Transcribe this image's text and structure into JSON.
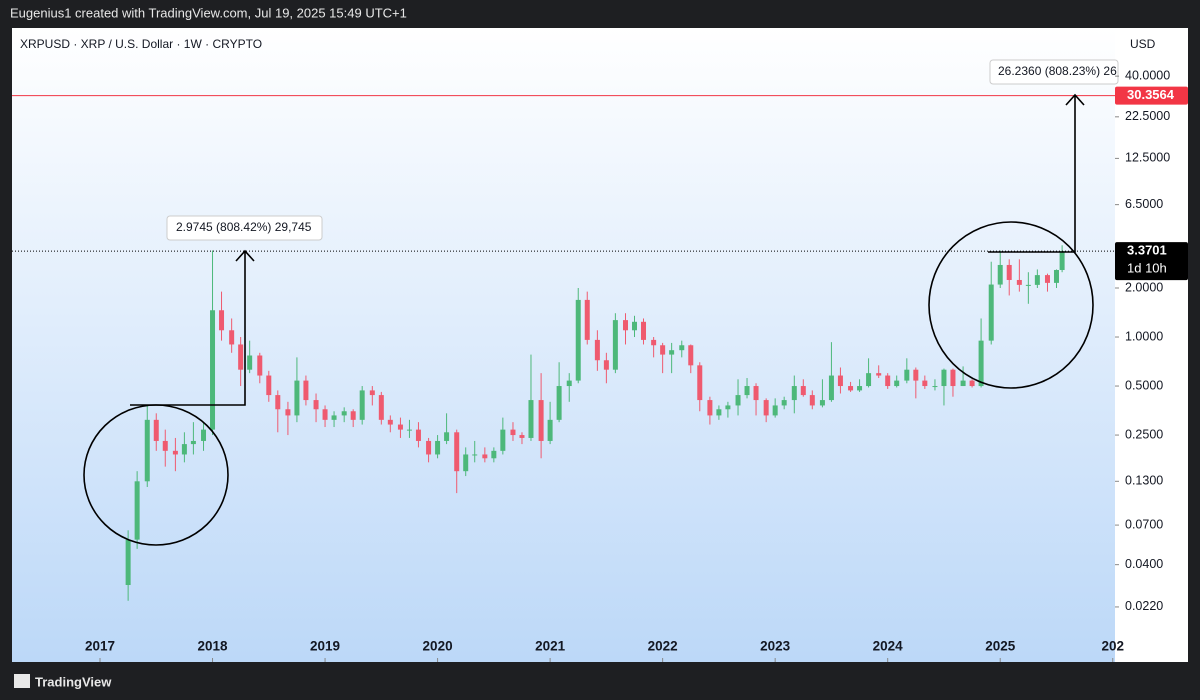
{
  "header": {
    "text": "Eugenius1 created with TradingView.com, Jul 19, 2025 15:49 UTC+1"
  },
  "footer": {
    "brand": "TradingView"
  },
  "chart_data": {
    "type": "candlestick",
    "title": "XRPUSD · XRP / U.S. Dollar · 1W · CRYPTO",
    "y_unit": "USD",
    "log_scale": true,
    "up_color": "#4db87a",
    "down_color": "#ef5a6f",
    "xlim": [
      2016.218,
      2026.02
    ],
    "xticks": [
      2017,
      2018,
      2019,
      2020,
      2021,
      2022,
      2023,
      2024,
      2025,
      {
        "value": 2026,
        "label": "202"
      }
    ],
    "ylim": [
      0.0101,
      79
    ],
    "yticks": [
      {
        "value": 40,
        "label": "40.0000"
      },
      {
        "value": 22.5,
        "label": "22.5000"
      },
      {
        "value": 12.5,
        "label": "12.5000"
      },
      {
        "value": 6.5,
        "label": "6.5000"
      },
      {
        "value": 2,
        "label": "2.0000"
      },
      {
        "value": 1,
        "label": "1.0000"
      },
      {
        "value": 0.5,
        "label": "0.5000"
      },
      {
        "value": 0.25,
        "label": "0.2500"
      },
      {
        "value": 0.13,
        "label": "0.1300"
      },
      {
        "value": 0.07,
        "label": "0.0700"
      },
      {
        "value": 0.04,
        "label": "0.0400"
      },
      {
        "value": 0.022,
        "label": "0.0220"
      }
    ],
    "price_lines": [
      {
        "value": 30.3564,
        "color": "#f23645"
      },
      {
        "value": 3.3701,
        "color": "#000000",
        "countdown": "1d 10h"
      }
    ],
    "annotations": [
      "2.9745 (808.42%) 29,745",
      "26.2360 (808.23%) 26"
    ],
    "candles": [
      [
        2017.25,
        0.03,
        0.065,
        0.024,
        0.057
      ],
      [
        2017.33,
        0.057,
        0.15,
        0.05,
        0.13
      ],
      [
        2017.42,
        0.13,
        0.38,
        0.12,
        0.31
      ],
      [
        2017.5,
        0.31,
        0.34,
        0.2,
        0.23
      ],
      [
        2017.58,
        0.23,
        0.27,
        0.16,
        0.2
      ],
      [
        2017.67,
        0.2,
        0.24,
        0.15,
        0.19
      ],
      [
        2017.75,
        0.19,
        0.26,
        0.17,
        0.22
      ],
      [
        2017.83,
        0.22,
        0.3,
        0.19,
        0.23
      ],
      [
        2017.92,
        0.23,
        0.3,
        0.2,
        0.27
      ],
      [
        2018.0,
        0.27,
        3.4,
        0.25,
        1.46
      ],
      [
        2018.08,
        1.46,
        1.9,
        0.95,
        1.1
      ],
      [
        2018.17,
        1.1,
        1.3,
        0.8,
        0.9
      ],
      [
        2018.25,
        0.9,
        1.0,
        0.5,
        0.63
      ],
      [
        2018.33,
        0.63,
        0.95,
        0.6,
        0.77
      ],
      [
        2018.42,
        0.77,
        0.8,
        0.52,
        0.58
      ],
      [
        2018.5,
        0.58,
        0.62,
        0.4,
        0.44
      ],
      [
        2018.58,
        0.44,
        0.47,
        0.26,
        0.36
      ],
      [
        2018.67,
        0.36,
        0.4,
        0.25,
        0.33
      ],
      [
        2018.75,
        0.33,
        0.75,
        0.3,
        0.54
      ],
      [
        2018.83,
        0.54,
        0.58,
        0.38,
        0.41
      ],
      [
        2018.92,
        0.41,
        0.45,
        0.3,
        0.36
      ],
      [
        2019.0,
        0.36,
        0.38,
        0.28,
        0.31
      ],
      [
        2019.08,
        0.31,
        0.35,
        0.28,
        0.33
      ],
      [
        2019.17,
        0.33,
        0.37,
        0.3,
        0.35
      ],
      [
        2019.25,
        0.35,
        0.36,
        0.28,
        0.31
      ],
      [
        2019.33,
        0.31,
        0.5,
        0.29,
        0.47
      ],
      [
        2019.42,
        0.47,
        0.5,
        0.38,
        0.44
      ],
      [
        2019.5,
        0.44,
        0.46,
        0.29,
        0.31
      ],
      [
        2019.58,
        0.31,
        0.33,
        0.26,
        0.29
      ],
      [
        2019.67,
        0.29,
        0.32,
        0.24,
        0.27
      ],
      [
        2019.75,
        0.27,
        0.31,
        0.24,
        0.27
      ],
      [
        2019.83,
        0.27,
        0.3,
        0.21,
        0.23
      ],
      [
        2019.92,
        0.23,
        0.24,
        0.17,
        0.19
      ],
      [
        2020.0,
        0.19,
        0.25,
        0.18,
        0.23
      ],
      [
        2020.08,
        0.23,
        0.34,
        0.22,
        0.26
      ],
      [
        2020.17,
        0.26,
        0.27,
        0.11,
        0.15
      ],
      [
        2020.25,
        0.15,
        0.21,
        0.14,
        0.19
      ],
      [
        2020.33,
        0.19,
        0.23,
        0.17,
        0.19
      ],
      [
        2020.42,
        0.19,
        0.21,
        0.17,
        0.18
      ],
      [
        2020.5,
        0.18,
        0.21,
        0.17,
        0.2
      ],
      [
        2020.58,
        0.2,
        0.32,
        0.19,
        0.27
      ],
      [
        2020.67,
        0.27,
        0.3,
        0.23,
        0.25
      ],
      [
        2020.75,
        0.25,
        0.26,
        0.22,
        0.24
      ],
      [
        2020.83,
        0.24,
        0.78,
        0.23,
        0.41
      ],
      [
        2020.92,
        0.41,
        0.6,
        0.18,
        0.23
      ],
      [
        2021.0,
        0.23,
        0.4,
        0.22,
        0.31
      ],
      [
        2021.08,
        0.31,
        0.7,
        0.3,
        0.5
      ],
      [
        2021.17,
        0.5,
        0.6,
        0.4,
        0.54
      ],
      [
        2021.25,
        0.54,
        2.0,
        0.52,
        1.69
      ],
      [
        2021.33,
        1.69,
        1.9,
        0.9,
        0.96
      ],
      [
        2021.42,
        0.96,
        1.1,
        0.62,
        0.72
      ],
      [
        2021.5,
        0.72,
        0.8,
        0.52,
        0.63
      ],
      [
        2021.58,
        0.63,
        1.4,
        0.6,
        1.27
      ],
      [
        2021.67,
        1.27,
        1.4,
        0.9,
        1.1
      ],
      [
        2021.75,
        1.1,
        1.35,
        1.0,
        1.24
      ],
      [
        2021.83,
        1.24,
        1.3,
        0.9,
        0.96
      ],
      [
        2021.92,
        0.96,
        1.0,
        0.75,
        0.89
      ],
      [
        2022.0,
        0.89,
        0.92,
        0.6,
        0.78
      ],
      [
        2022.08,
        0.78,
        0.92,
        0.6,
        0.83
      ],
      [
        2022.17,
        0.83,
        0.95,
        0.75,
        0.89
      ],
      [
        2022.25,
        0.89,
        0.9,
        0.6,
        0.67
      ],
      [
        2022.33,
        0.67,
        0.7,
        0.35,
        0.41
      ],
      [
        2022.42,
        0.41,
        0.43,
        0.29,
        0.33
      ],
      [
        2022.5,
        0.33,
        0.38,
        0.31,
        0.36
      ],
      [
        2022.58,
        0.36,
        0.4,
        0.32,
        0.38
      ],
      [
        2022.67,
        0.38,
        0.55,
        0.33,
        0.44
      ],
      [
        2022.75,
        0.44,
        0.56,
        0.42,
        0.5
      ],
      [
        2022.83,
        0.5,
        0.52,
        0.33,
        0.41
      ],
      [
        2022.92,
        0.41,
        0.42,
        0.3,
        0.33
      ],
      [
        2023.0,
        0.33,
        0.42,
        0.32,
        0.38
      ],
      [
        2023.08,
        0.38,
        0.43,
        0.36,
        0.41
      ],
      [
        2023.17,
        0.41,
        0.58,
        0.34,
        0.5
      ],
      [
        2023.25,
        0.5,
        0.55,
        0.43,
        0.44
      ],
      [
        2023.33,
        0.44,
        0.47,
        0.36,
        0.38
      ],
      [
        2023.42,
        0.38,
        0.55,
        0.37,
        0.41
      ],
      [
        2023.5,
        0.41,
        0.93,
        0.4,
        0.58
      ],
      [
        2023.58,
        0.58,
        0.65,
        0.45,
        0.5
      ],
      [
        2023.67,
        0.5,
        0.53,
        0.46,
        0.47
      ],
      [
        2023.75,
        0.47,
        0.55,
        0.46,
        0.5
      ],
      [
        2023.83,
        0.5,
        0.74,
        0.49,
        0.6
      ],
      [
        2023.92,
        0.6,
        0.67,
        0.56,
        0.58
      ],
      [
        2024.0,
        0.58,
        0.6,
        0.48,
        0.5
      ],
      [
        2024.08,
        0.5,
        0.58,
        0.49,
        0.54
      ],
      [
        2024.17,
        0.54,
        0.74,
        0.52,
        0.63
      ],
      [
        2024.25,
        0.63,
        0.65,
        0.42,
        0.54
      ],
      [
        2024.33,
        0.54,
        0.58,
        0.48,
        0.5
      ],
      [
        2024.42,
        0.5,
        0.55,
        0.47,
        0.5
      ],
      [
        2024.5,
        0.5,
        0.64,
        0.38,
        0.63
      ],
      [
        2024.58,
        0.63,
        0.64,
        0.43,
        0.5
      ],
      [
        2024.67,
        0.5,
        0.66,
        0.5,
        0.54
      ],
      [
        2024.75,
        0.54,
        0.55,
        0.49,
        0.5
      ],
      [
        2024.83,
        0.5,
        1.3,
        0.49,
        0.95
      ],
      [
        2024.92,
        0.95,
        2.9,
        0.9,
        2.1
      ],
      [
        2025.0,
        2.1,
        3.4,
        2.0,
        2.77
      ],
      [
        2025.08,
        2.77,
        3.0,
        1.8,
        2.24
      ],
      [
        2025.17,
        2.24,
        3.0,
        1.9,
        2.09
      ],
      [
        2025.25,
        2.09,
        2.5,
        1.6,
        2.09
      ],
      [
        2025.33,
        2.09,
        2.6,
        2.0,
        2.4
      ],
      [
        2025.42,
        2.4,
        2.45,
        1.9,
        2.15
      ],
      [
        2025.5,
        2.15,
        2.6,
        2.0,
        2.58
      ],
      [
        2025.55,
        2.58,
        3.66,
        2.5,
        3.37
      ]
    ]
  }
}
